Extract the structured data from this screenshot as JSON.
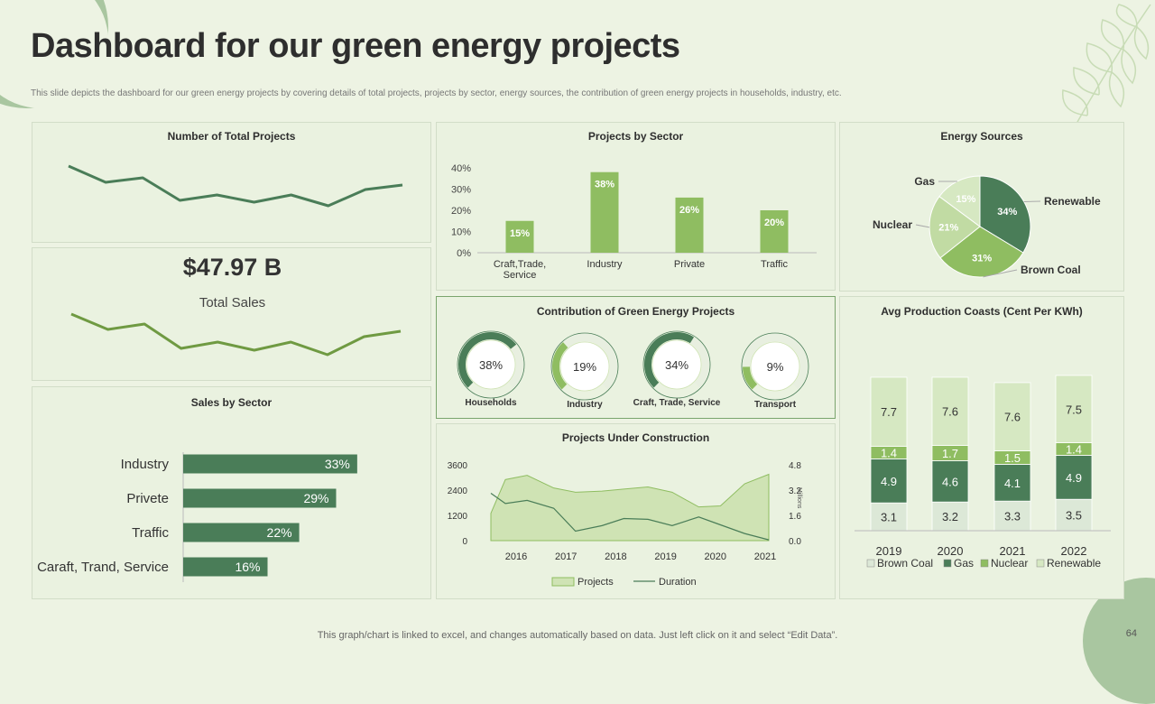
{
  "title": "Dashboard for our green energy projects",
  "subtitle": "This slide depicts the dashboard for our green energy projects by covering details of total projects, projects by sector, energy sources, the contribution of green energy projects in households, industry, etc.",
  "footer": "This graph/chart is linked to excel,  and changes automatically based on data. Just left click on it and select “Edit Data”.",
  "page_number": "64",
  "total_sales": {
    "value": "$47.97 B",
    "label": "Total Sales"
  },
  "colors": {
    "dark": "#4a7d58",
    "mid": "#6f9a42",
    "light": "#8fbd61",
    "pale": "#cfe3b4",
    "palest": "#e0eed2"
  },
  "chart_data": [
    {
      "id": "total-projects",
      "type": "line",
      "title": "Number of Total Projects",
      "values": [
        80,
        62,
        67,
        42,
        48,
        40,
        48,
        36,
        54,
        59
      ],
      "ylim": [
        0,
        100
      ]
    },
    {
      "id": "total-sales-trend",
      "type": "line",
      "values": [
        75,
        58,
        64,
        37,
        44,
        35,
        44,
        30,
        50,
        56
      ],
      "ylim": [
        0,
        100
      ]
    },
    {
      "id": "projects-by-sector",
      "type": "bar",
      "title": "Projects by Sector",
      "categories": [
        "Craft,Trade,\nService",
        "Industry",
        "Private",
        "Traffic"
      ],
      "values": [
        15,
        38,
        26,
        20
      ],
      "data_labels": [
        "15%",
        "38%",
        "26%",
        "20%"
      ],
      "yticks": [
        "0%",
        "10%",
        "20%",
        "30%",
        "40%"
      ],
      "ylim": [
        0,
        40
      ]
    },
    {
      "id": "energy-sources",
      "type": "pie",
      "title": "Energy Sources",
      "labels": [
        "Renewable",
        "Brown Coal",
        "Nuclear",
        "Gas"
      ],
      "values": [
        34,
        31,
        21,
        15
      ],
      "data_labels": [
        "34%",
        "31%",
        "21%",
        "15%"
      ],
      "colors": [
        "#4a7d58",
        "#8fbd61",
        "#c1dba3",
        "#d6e8c2"
      ]
    },
    {
      "id": "sales-by-sector",
      "type": "bar",
      "title": "Sales by Sector",
      "orientation": "horizontal",
      "categories": [
        "Industry",
        "Privete",
        "Traffic",
        "Caraft, Trand, Service"
      ],
      "values": [
        33,
        29,
        22,
        16
      ],
      "data_labels": [
        "33%",
        "29%",
        "22%",
        "16%"
      ],
      "xlim": [
        0,
        45
      ]
    },
    {
      "id": "contribution",
      "type": "donut",
      "title": "Contribution  of Green Energy Projects",
      "categories": [
        "Households",
        "Industry",
        "Craft, Trade, Service",
        "Transport"
      ],
      "values": [
        38,
        19,
        34,
        9
      ],
      "data_labels": [
        "38%",
        "19%",
        "34%",
        "9%"
      ],
      "colors": [
        "#4a7d58",
        "#8fbd61",
        "#4a7d58",
        "#8fbd61"
      ]
    },
    {
      "id": "avg-production",
      "type": "bar",
      "stacked": true,
      "title": "Avg Production  Coasts (Cent Per KWh)",
      "categories": [
        "2019",
        "2020",
        "2021",
        "2022"
      ],
      "series": [
        {
          "name": "Brown Coal",
          "values": [
            3.1,
            3.2,
            3.3,
            3.5
          ],
          "labels": [
            "3.1",
            "3.2",
            "3.3",
            "3.5"
          ],
          "color": "#dce8d7",
          "text": "#333333"
        },
        {
          "name": "Gas",
          "values": [
            4.9,
            4.6,
            4.1,
            4.9
          ],
          "labels": [
            "4.9",
            "4.6",
            "4.1",
            "4.9"
          ],
          "color": "#4a7d58",
          "text": "#ffffff"
        },
        {
          "name": "Nuclear",
          "values": [
            1.4,
            1.7,
            1.5,
            1.4
          ],
          "labels": [
            "1.4",
            "1.7",
            "1.5",
            "1.4"
          ],
          "color": "#8fbd61",
          "text": "#ffffff"
        },
        {
          "name": "Renewable",
          "values": [
            7.7,
            7.6,
            7.6,
            7.5
          ],
          "labels": [
            "7.7",
            "7.6",
            "7.6",
            "7.5"
          ],
          "color": "#d6e8c2",
          "text": "#333333"
        }
      ],
      "ylim": [
        0,
        18
      ]
    },
    {
      "id": "under-construction",
      "type": "area",
      "title": "Projects Under Construction",
      "x": [
        "2016",
        "2017",
        "2018",
        "2019",
        "2020",
        "2021"
      ],
      "series": [
        {
          "name": "Projects",
          "type": "area",
          "axis": "left",
          "x": [
            2015.25,
            2015.55,
            2016.0,
            2016.55,
            2017.0,
            2017.55,
            2018.0,
            2018.5,
            2019.0,
            2019.55,
            2020.0,
            2020.5,
            2021.0
          ],
          "values": [
            1300,
            2900,
            3100,
            2500,
            2300,
            2350,
            2450,
            2550,
            2300,
            1600,
            1650,
            2700,
            3150
          ]
        },
        {
          "name": "Duration",
          "type": "line",
          "axis": "right",
          "x": [
            2015.25,
            2015.55,
            2016.0,
            2016.55,
            2017.0,
            2017.55,
            2018.0,
            2018.5,
            2019.0,
            2019.55,
            2020.0,
            2020.5,
            2021.0
          ],
          "values": [
            3.0,
            2.35,
            2.55,
            2.05,
            0.6,
            0.95,
            1.4,
            1.35,
            0.95,
            1.5,
            1.0,
            0.45,
            0.05
          ]
        }
      ],
      "ylim": [
        0,
        3600
      ],
      "yticks": [
        "0",
        "1200",
        "2400",
        "3600"
      ],
      "y2lim": [
        0,
        4.8
      ],
      "y2ticks": [
        "0.0",
        "1.6",
        "3.2",
        "4.8"
      ],
      "y2label": "Millions"
    }
  ]
}
